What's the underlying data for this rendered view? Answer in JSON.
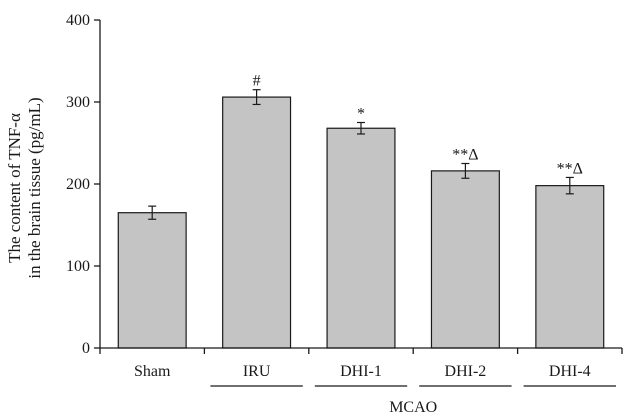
{
  "chart_data": {
    "type": "bar",
    "ylabel_line1": "The content of TNF-α",
    "ylabel_line2": "in the brain tissue (pg/mL)",
    "xlabel": "",
    "ylim": [
      0,
      400
    ],
    "yticks": [
      0,
      100,
      200,
      300,
      400
    ],
    "categories": [
      "Sham",
      "IRU",
      "DHI-1",
      "DHI-2",
      "DHI-4"
    ],
    "values": [
      165,
      306,
      268,
      216,
      198
    ],
    "errors": [
      8,
      9,
      7,
      9,
      10
    ],
    "annotations": [
      "",
      "#",
      "*",
      "**Δ",
      "**Δ"
    ],
    "group": {
      "label": "MCAO",
      "categories": [
        "IRU",
        "DHI-1",
        "DHI-2",
        "DHI-4"
      ]
    },
    "grid": false,
    "legend": "none",
    "bar_color": "#c4c4c4"
  }
}
